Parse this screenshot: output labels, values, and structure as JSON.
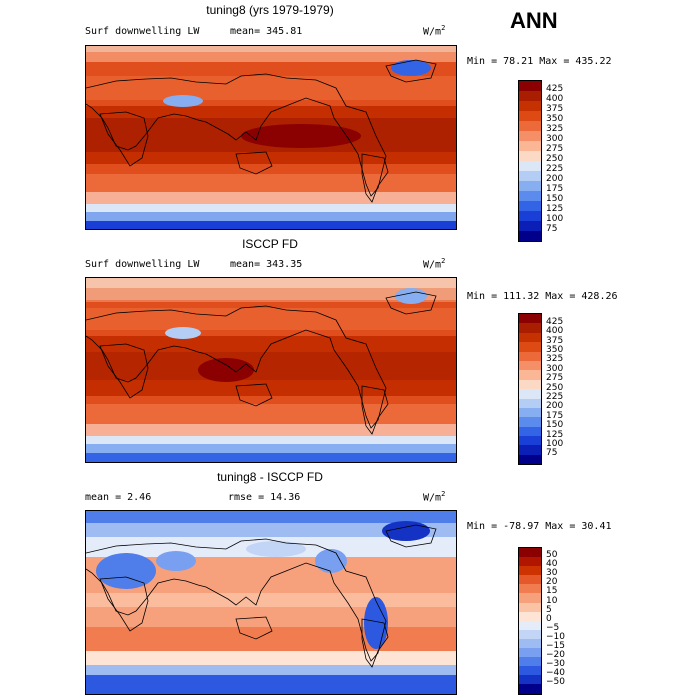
{
  "season": "ANN",
  "panels": [
    {
      "title": "tuning8 (yrs 1979-1979)",
      "variable": "Surf downwelling LW",
      "stat1": "mean= 345.81",
      "stat2": "",
      "units_base": "W/m",
      "units_exp": "2",
      "minmax": "Min =  78.21 Max = 435.22",
      "colorbar_levels": [
        "425",
        "400",
        "375",
        "350",
        "325",
        "300",
        "275",
        "250",
        "225",
        "200",
        "175",
        "150",
        "125",
        "100",
        "75"
      ]
    },
    {
      "title": "ISCCP FD",
      "variable": "Surf downwelling LW",
      "stat1": "mean= 343.35",
      "stat2": "",
      "units_base": "W/m",
      "units_exp": "2",
      "minmax": "Min = 111.32 Max = 428.26",
      "colorbar_levels": [
        "425",
        "400",
        "375",
        "350",
        "325",
        "300",
        "275",
        "250",
        "225",
        "200",
        "175",
        "150",
        "125",
        "100",
        "75"
      ]
    },
    {
      "title": "tuning8 - ISCCP FD",
      "variable": "",
      "stat1": "mean =    2.46",
      "stat2": "rmse =   14.36",
      "units_base": "W/m",
      "units_exp": "2",
      "minmax": "Min = -78.97 Max =  30.41",
      "colorbar_levels": [
        "50",
        "40",
        "30",
        "20",
        "15",
        "10",
        "5",
        "0",
        "−5",
        "−10",
        "−15",
        "−20",
        "−30",
        "−40",
        "−50"
      ]
    }
  ],
  "colors": {
    "abs_scale": [
      "#8b0000",
      "#a91d00",
      "#c53100",
      "#dd4a14",
      "#ec6a3a",
      "#f58f67",
      "#fbb696",
      "#fcd9c4",
      "#dbe6f6",
      "#b3cdf4",
      "#86aef0",
      "#5b8ced",
      "#3464e6",
      "#1a3fd7",
      "#0b1fb7",
      "#00008b"
    ],
    "diff_scale": [
      "#8b0000",
      "#b01500",
      "#cc3300",
      "#e5582a",
      "#f07c4f",
      "#f7a07c",
      "#fbc3a6",
      "#fde4d4",
      "#e4ecfa",
      "#c3d5f6",
      "#9fbcf2",
      "#789ff0",
      "#4f7de9",
      "#2c59df",
      "#1433c5",
      "#00008b"
    ]
  }
}
